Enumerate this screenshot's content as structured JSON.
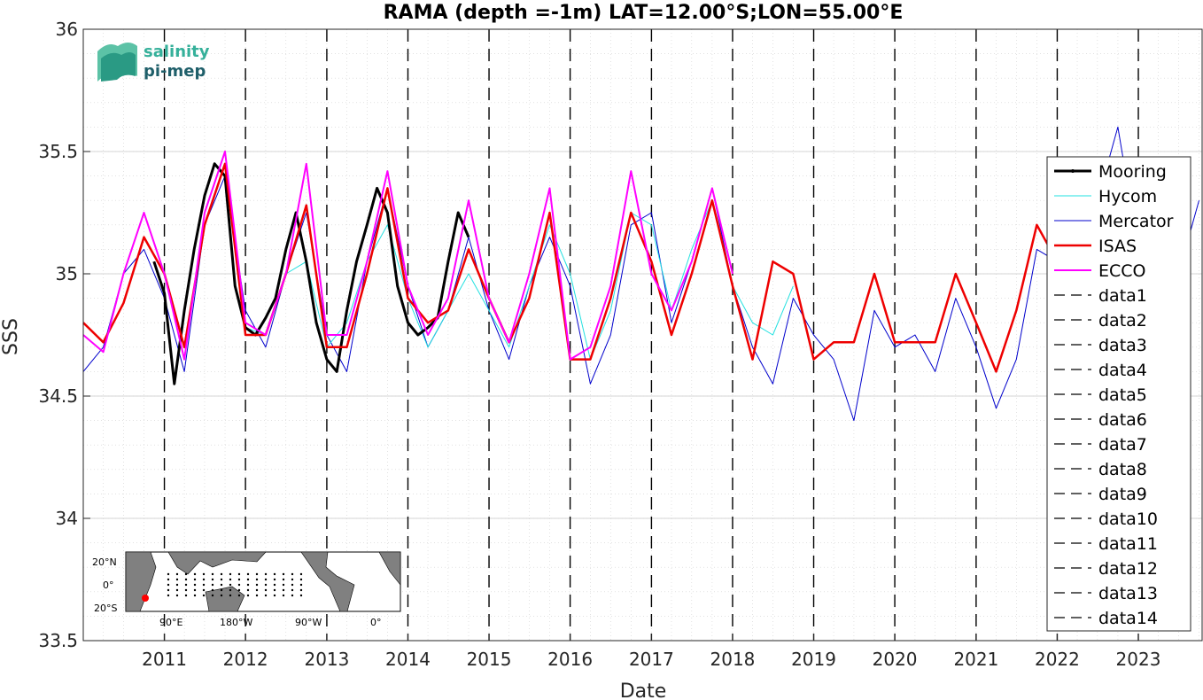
{
  "chart_data": {
    "type": "line",
    "title": "RAMA (depth =-1m) LAT=12.00°S;LON=55.00°E",
    "xlabel": "Date",
    "ylabel": "SSS",
    "xlim": [
      "2010-01-01",
      "2023-10-15"
    ],
    "ylim": [
      33.5,
      36
    ],
    "yticks": [
      "33.5",
      "34",
      "34.5",
      "35",
      "35.5",
      "36"
    ],
    "xticks": [
      "2011",
      "2012",
      "2013",
      "2014",
      "2015",
      "2016",
      "2017",
      "2018",
      "2019",
      "2020",
      "2021",
      "2022",
      "2023"
    ],
    "grid": true,
    "legend_position": "right",
    "vlines_dashed": [
      "2011-01-01",
      "2012-01-01",
      "2013-01-01",
      "2014-01-01",
      "2015-01-01",
      "2016-01-01",
      "2017-01-01",
      "2018-01-01",
      "2019-01-01",
      "2020-01-01",
      "2021-01-01",
      "2022-01-01",
      "2023-01-01"
    ],
    "series": [
      {
        "name": "Mooring",
        "color": "#000000",
        "width": 3,
        "x": [
          "2010-11-15",
          "2011-01-01",
          "2011-02-15",
          "2011-04-01",
          "2011-05-15",
          "2011-07-01",
          "2011-08-15",
          "2011-10-01",
          "2011-11-15",
          "2012-01-01",
          "2012-02-15",
          "2012-04-01",
          "2012-05-15",
          "2012-07-01",
          "2012-08-15",
          "2012-10-01",
          "2012-11-15",
          "2013-01-01",
          "2013-02-15",
          "2013-04-01",
          "2013-05-15",
          "2013-07-01",
          "2013-08-15",
          "2013-10-01",
          "2013-11-15",
          "2014-01-01",
          "2014-02-15",
          "2014-04-01",
          "2014-05-15",
          "2014-07-01",
          "2014-08-15",
          "2014-10-01"
        ],
        "y": [
          35.05,
          34.92,
          34.55,
          34.85,
          35.1,
          35.32,
          35.45,
          35.4,
          34.95,
          34.78,
          34.75,
          34.82,
          34.9,
          35.1,
          35.25,
          35.05,
          34.8,
          34.65,
          34.6,
          34.85,
          35.05,
          35.2,
          35.35,
          35.25,
          34.95,
          34.8,
          34.75,
          34.78,
          34.82,
          35.05,
          35.25,
          35.15
        ]
      },
      {
        "name": "Hycom",
        "color": "#22e0e0",
        "width": 1,
        "x": [
          "2012-01-01",
          "2012-04-01",
          "2012-07-01",
          "2012-10-01",
          "2013-01-01",
          "2013-04-01",
          "2013-07-01",
          "2013-10-01",
          "2014-01-01",
          "2014-04-01",
          "2014-07-01",
          "2014-10-01",
          "2015-01-01",
          "2015-04-01",
          "2015-07-01",
          "2015-10-01",
          "2016-01-01",
          "2016-04-01",
          "2016-07-01",
          "2016-10-01",
          "2017-01-01",
          "2017-04-01",
          "2017-07-01",
          "2017-10-01",
          "2018-01-01",
          "2018-04-01",
          "2018-07-01",
          "2018-10-01"
        ],
        "y": [
          34.78,
          34.75,
          35.0,
          35.05,
          34.7,
          34.8,
          35.05,
          35.2,
          34.9,
          34.7,
          34.85,
          35.0,
          34.85,
          34.7,
          34.95,
          35.2,
          35.0,
          34.65,
          34.85,
          35.25,
          35.2,
          34.85,
          35.1,
          35.3,
          34.95,
          34.8,
          34.75,
          34.95
        ]
      },
      {
        "name": "Mercator",
        "color": "#0000cc",
        "width": 1,
        "x": [
          "2010-01-01",
          "2010-04-01",
          "2010-07-01",
          "2010-10-01",
          "2011-01-01",
          "2011-04-01",
          "2011-07-01",
          "2011-10-01",
          "2012-01-01",
          "2012-04-01",
          "2012-07-01",
          "2012-10-01",
          "2013-01-01",
          "2013-04-01",
          "2013-07-01",
          "2013-10-01",
          "2014-01-01",
          "2014-04-01",
          "2014-07-01",
          "2014-10-01",
          "2015-01-01",
          "2015-04-01",
          "2015-07-01",
          "2015-10-01",
          "2016-01-01",
          "2016-04-01",
          "2016-07-01",
          "2016-10-01",
          "2017-01-01",
          "2017-04-01",
          "2017-07-01",
          "2017-10-01",
          "2018-01-01",
          "2018-04-01",
          "2018-07-01",
          "2018-10-01",
          "2019-01-01",
          "2019-04-01",
          "2019-07-01",
          "2019-10-01",
          "2020-01-01",
          "2020-04-01",
          "2020-07-01",
          "2020-10-01",
          "2021-01-01",
          "2021-04-01",
          "2021-07-01",
          "2021-10-01",
          "2022-01-01",
          "2022-04-01",
          "2022-07-01",
          "2022-10-01",
          "2023-01-01",
          "2023-04-01",
          "2023-07-01",
          "2023-10-01"
        ],
        "y": [
          34.6,
          34.7,
          35.0,
          35.1,
          34.9,
          34.6,
          35.2,
          35.4,
          34.85,
          34.7,
          35.0,
          35.25,
          34.75,
          34.6,
          35.05,
          35.35,
          34.95,
          34.7,
          34.85,
          35.15,
          34.85,
          34.65,
          34.95,
          35.15,
          34.95,
          34.55,
          34.75,
          35.2,
          35.25,
          34.8,
          35.05,
          35.35,
          34.95,
          34.7,
          34.55,
          34.9,
          34.75,
          34.65,
          34.4,
          34.85,
          34.7,
          34.75,
          34.6,
          34.9,
          34.7,
          34.45,
          34.65,
          35.1,
          35.05,
          34.9,
          35.3,
          35.6,
          35.1,
          35.2,
          35.0,
          35.3
        ]
      },
      {
        "name": "ISAS",
        "color": "#ee0000",
        "width": 2.5,
        "x": [
          "2010-01-01",
          "2010-04-01",
          "2010-07-01",
          "2010-10-01",
          "2011-01-01",
          "2011-04-01",
          "2011-07-01",
          "2011-10-01",
          "2012-01-01",
          "2012-04-01",
          "2012-07-01",
          "2012-10-01",
          "2013-01-01",
          "2013-04-01",
          "2013-07-01",
          "2013-10-01",
          "2014-01-01",
          "2014-04-01",
          "2014-07-01",
          "2014-10-01",
          "2015-01-01",
          "2015-04-01",
          "2015-07-01",
          "2015-10-01",
          "2016-01-01",
          "2016-04-01",
          "2016-07-01",
          "2016-10-01",
          "2017-01-01",
          "2017-04-01",
          "2017-07-01",
          "2017-10-01",
          "2018-01-01",
          "2018-04-01",
          "2018-07-01",
          "2018-10-01",
          "2019-01-01",
          "2019-04-01",
          "2019-07-01",
          "2019-10-01",
          "2020-01-01",
          "2020-04-01",
          "2020-07-01",
          "2020-10-01",
          "2021-01-01",
          "2021-04-01",
          "2021-07-01",
          "2021-10-01",
          "2022-01-01"
        ],
        "y": [
          34.8,
          34.72,
          34.88,
          35.15,
          35.0,
          34.7,
          35.2,
          35.45,
          34.75,
          34.75,
          35.0,
          35.28,
          34.7,
          34.7,
          35.0,
          35.35,
          34.9,
          34.8,
          34.85,
          35.1,
          34.9,
          34.72,
          34.9,
          35.25,
          34.65,
          34.65,
          34.9,
          35.25,
          35.05,
          34.75,
          35.0,
          35.3,
          34.95,
          34.65,
          35.05,
          35.0,
          34.65,
          34.72,
          34.72,
          35.0,
          34.72,
          34.72,
          34.72,
          35.0,
          34.8,
          34.6,
          34.85,
          35.2,
          35.05
        ]
      },
      {
        "name": "ECCO",
        "color": "#ff00ff",
        "width": 2,
        "x": [
          "2010-01-01",
          "2010-04-01",
          "2010-07-01",
          "2010-10-01",
          "2011-01-01",
          "2011-04-01",
          "2011-07-01",
          "2011-10-01",
          "2012-01-01",
          "2012-04-01",
          "2012-07-01",
          "2012-10-01",
          "2013-01-01",
          "2013-04-01",
          "2013-07-01",
          "2013-10-01",
          "2014-01-01",
          "2014-04-01",
          "2014-07-01",
          "2014-10-01",
          "2015-01-01",
          "2015-04-01",
          "2015-07-01",
          "2015-10-01",
          "2016-01-01",
          "2016-04-01",
          "2016-07-01",
          "2016-10-01",
          "2017-01-01",
          "2017-04-01",
          "2017-07-01",
          "2017-10-01",
          "2018-01-01"
        ],
        "y": [
          34.75,
          34.68,
          35.0,
          35.25,
          35.0,
          34.65,
          35.25,
          35.5,
          34.8,
          34.75,
          35.0,
          35.45,
          34.75,
          34.75,
          35.05,
          35.42,
          34.95,
          34.75,
          34.9,
          35.3,
          34.9,
          34.72,
          35.0,
          35.35,
          34.65,
          34.7,
          34.95,
          35.42,
          35.0,
          34.85,
          35.05,
          35.35,
          35.0
        ]
      }
    ]
  },
  "legend": {
    "entries": [
      "Mooring",
      "Hycom",
      "Mercator",
      "ISAS",
      "ECCO",
      "data1",
      "data2",
      "data3",
      "data4",
      "data5",
      "data6",
      "data7",
      "data8",
      "data9",
      "data10",
      "data11",
      "data12",
      "data13",
      "data14"
    ]
  },
  "logo": {
    "line1": "salinity",
    "line2": "pi-mep"
  },
  "inset_map": {
    "lat_labels": [
      "20°N",
      "0°",
      "20°S"
    ],
    "lon_labels": [
      "90°E",
      "180°W",
      "90°W",
      "0°"
    ],
    "marker_color": "#ff0000"
  }
}
